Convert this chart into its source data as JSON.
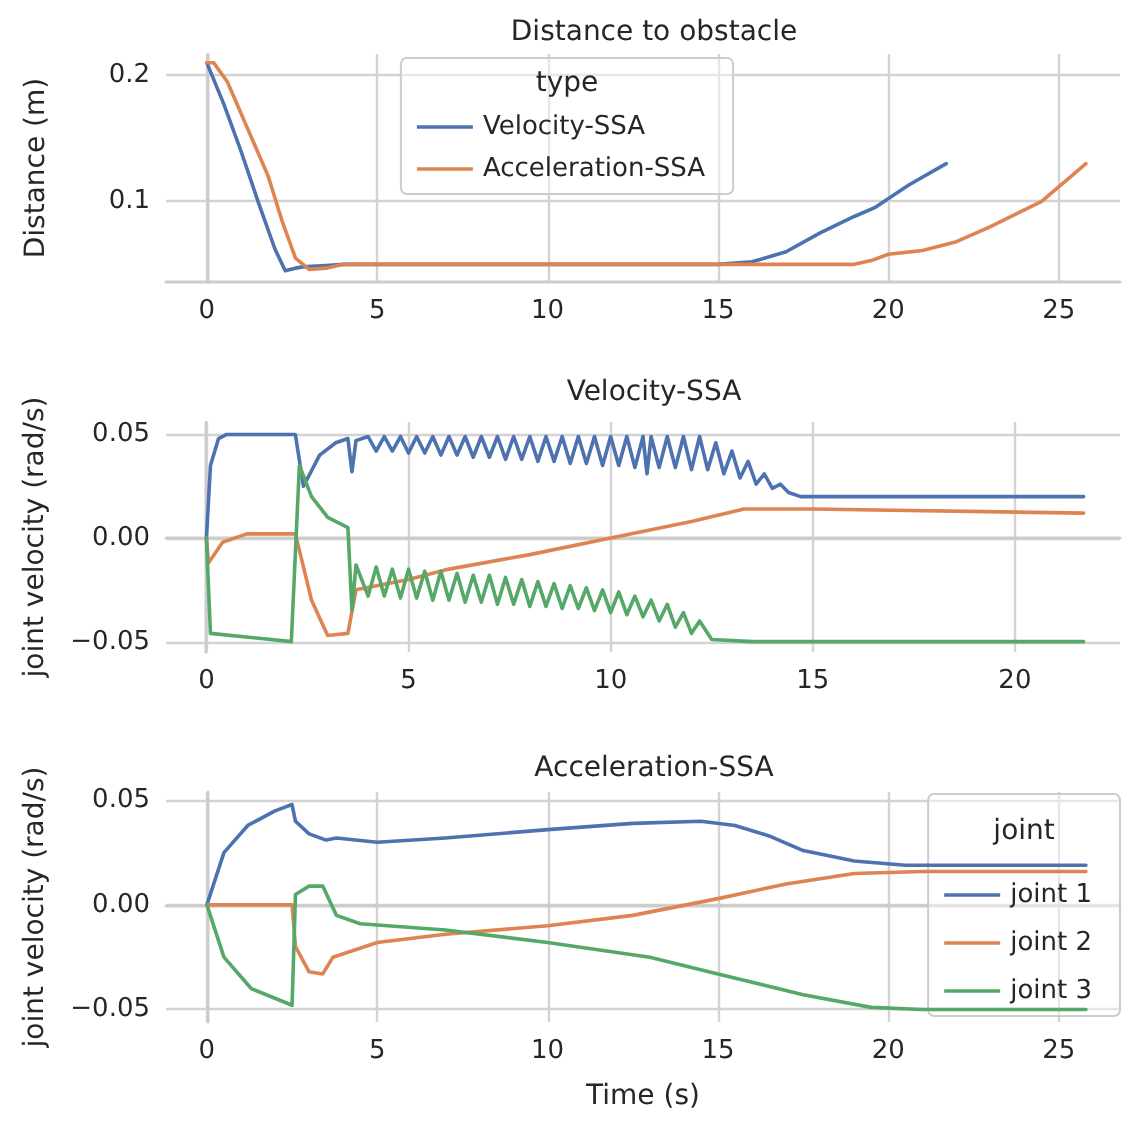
{
  "chart_data": [
    {
      "type": "line",
      "title": "Distance to obstacle",
      "ylabel": "Distance (m)",
      "legend_title": "type",
      "legend": "top",
      "grid": true,
      "xlim": [
        -1.2,
        26.8
      ],
      "ylim": [
        0.036,
        0.217
      ],
      "xticks": [
        0,
        5,
        10,
        15,
        20,
        25
      ],
      "yticks": [
        {
          "value": 0.1,
          "label": "0.1"
        },
        {
          "value": 0.2,
          "label": "0.2"
        }
      ],
      "series": [
        {
          "name": "Velocity-SSA",
          "color": "#4c72b0",
          "x": [
            0,
            0.5,
            1,
            1.5,
            2,
            2.3,
            2.6,
            2.8,
            3.5,
            4,
            15,
            16,
            17,
            18,
            19,
            19.6,
            20.6,
            21.7
          ],
          "values": [
            0.21,
            0.177,
            0.14,
            0.1,
            0.062,
            0.045,
            0.047,
            0.048,
            0.049,
            0.05,
            0.05,
            0.052,
            0.06,
            0.075,
            0.088,
            0.095,
            0.113,
            0.13
          ]
        },
        {
          "name": "Acceleration-SSA",
          "color": "#dd8452",
          "x": [
            0,
            0.2,
            0.6,
            1,
            1.4,
            1.8,
            2.2,
            2.6,
            3,
            3.5,
            4,
            10,
            19,
            19.5,
            20,
            21,
            22,
            23,
            24.5,
            25.8
          ],
          "values": [
            0.21,
            0.21,
            0.195,
            0.17,
            0.145,
            0.12,
            0.085,
            0.055,
            0.046,
            0.047,
            0.05,
            0.05,
            0.05,
            0.053,
            0.058,
            0.061,
            0.068,
            0.08,
            0.1,
            0.13
          ]
        }
      ]
    },
    {
      "type": "line",
      "title": "Velocity-SSA",
      "ylabel": "joint velocity (rad/s)",
      "grid": true,
      "xlim": [
        -1,
        22.6
      ],
      "ylim": [
        -0.055,
        0.056
      ],
      "xticks": [
        0,
        5,
        10,
        15,
        20
      ],
      "yticks": [
        {
          "value": -0.05,
          "label": "−0.05"
        },
        {
          "value": 0,
          "label": "0.00"
        },
        {
          "value": 0.05,
          "label": "0.05"
        }
      ],
      "series": [
        {
          "color": "#4c72b0",
          "x": [
            0,
            0.1,
            0.3,
            0.5,
            2.2,
            2.4,
            2.8,
            3.2,
            3.5,
            3.6,
            3.7,
            4.0,
            4.2,
            4.4,
            4.6,
            4.8,
            5.0,
            5.2,
            5.4,
            5.6,
            5.8,
            6.0,
            6.2,
            6.4,
            6.6,
            6.8,
            7.0,
            7.2,
            7.4,
            7.6,
            7.8,
            8.0,
            8.2,
            8.4,
            8.6,
            8.8,
            9.0,
            9.2,
            9.4,
            9.6,
            9.8,
            10.0,
            10.2,
            10.4,
            10.6,
            10.8,
            10.9,
            11.0,
            11.2,
            11.4,
            11.6,
            11.8,
            12.0,
            12.2,
            12.4,
            12.6,
            12.8,
            13.0,
            13.2,
            13.4,
            13.6,
            13.8,
            14.0,
            14.2,
            14.4,
            14.7,
            21.7
          ],
          "values": [
            0,
            0.035,
            0.048,
            0.05,
            0.05,
            0.025,
            0.04,
            0.046,
            0.048,
            0.032,
            0.047,
            0.049,
            0.042,
            0.049,
            0.042,
            0.049,
            0.041,
            0.049,
            0.041,
            0.049,
            0.04,
            0.049,
            0.04,
            0.049,
            0.039,
            0.049,
            0.039,
            0.049,
            0.038,
            0.049,
            0.038,
            0.049,
            0.037,
            0.049,
            0.037,
            0.049,
            0.036,
            0.049,
            0.036,
            0.049,
            0.035,
            0.049,
            0.035,
            0.049,
            0.034,
            0.049,
            0.031,
            0.049,
            0.034,
            0.049,
            0.034,
            0.049,
            0.033,
            0.049,
            0.033,
            0.046,
            0.031,
            0.042,
            0.029,
            0.037,
            0.026,
            0.031,
            0.024,
            0.026,
            0.022,
            0.02,
            0.02
          ]
        },
        {
          "color": "#dd8452",
          "x": [
            0,
            0.05,
            0.4,
            1,
            2.2,
            2.6,
            3,
            3.5,
            3.7,
            5,
            6,
            8,
            10,
            12,
            13.3,
            15,
            21.7
          ],
          "values": [
            0,
            -0.012,
            -0.002,
            0.002,
            0.002,
            -0.03,
            -0.047,
            -0.046,
            -0.025,
            -0.02,
            -0.015,
            -0.008,
            0,
            0.008,
            0.014,
            0.014,
            0.012
          ]
        },
        {
          "color": "#55a868",
          "x": [
            0,
            0.1,
            2.1,
            2.3,
            2.6,
            3.0,
            3.5,
            3.6,
            3.7,
            4.0,
            4.2,
            4.4,
            4.6,
            4.8,
            5.0,
            5.2,
            5.4,
            5.6,
            5.8,
            6.0,
            6.2,
            6.4,
            6.6,
            6.8,
            7.0,
            7.2,
            7.4,
            7.6,
            7.8,
            8.0,
            8.2,
            8.4,
            8.6,
            8.8,
            9.0,
            9.2,
            9.4,
            9.6,
            9.8,
            10.0,
            10.2,
            10.4,
            10.6,
            10.8,
            11.0,
            11.2,
            11.4,
            11.6,
            11.8,
            12.0,
            12.2,
            12.5,
            13.5,
            21.7
          ],
          "values": [
            0,
            -0.046,
            -0.05,
            0.035,
            0.02,
            0.01,
            0.005,
            -0.035,
            -0.013,
            -0.028,
            -0.014,
            -0.028,
            -0.015,
            -0.029,
            -0.015,
            -0.029,
            -0.016,
            -0.03,
            -0.016,
            -0.03,
            -0.017,
            -0.031,
            -0.018,
            -0.031,
            -0.018,
            -0.032,
            -0.019,
            -0.032,
            -0.02,
            -0.033,
            -0.021,
            -0.033,
            -0.022,
            -0.034,
            -0.023,
            -0.034,
            -0.024,
            -0.035,
            -0.025,
            -0.036,
            -0.026,
            -0.037,
            -0.028,
            -0.038,
            -0.03,
            -0.04,
            -0.032,
            -0.043,
            -0.036,
            -0.046,
            -0.04,
            -0.049,
            -0.05,
            -0.05
          ]
        }
      ]
    },
    {
      "type": "line",
      "title": "Acceleration-SSA",
      "xlabel": "Time (s)",
      "ylabel": "joint velocity (rad/s)",
      "legend_title": "joint",
      "legend": "right",
      "grid": true,
      "xlim": [
        -1.2,
        26.8
      ],
      "ylim": [
        -0.056,
        0.054
      ],
      "xticks": [
        0,
        5,
        10,
        15,
        20,
        25
      ],
      "yticks": [
        {
          "value": -0.05,
          "label": "−0.05"
        },
        {
          "value": 0,
          "label": "0.00"
        },
        {
          "value": 0.05,
          "label": "0.05"
        }
      ],
      "series": [
        {
          "name": "joint 1",
          "color": "#4c72b0",
          "x": [
            0,
            0.5,
            1.2,
            2,
            2.5,
            2.6,
            3,
            3.5,
            3.8,
            5,
            7,
            10,
            12.5,
            14.5,
            15.5,
            16.5,
            17.5,
            19,
            20.5,
            25.8
          ],
          "values": [
            0,
            0.025,
            0.038,
            0.045,
            0.048,
            0.04,
            0.034,
            0.031,
            0.032,
            0.03,
            0.032,
            0.036,
            0.039,
            0.04,
            0.038,
            0.033,
            0.026,
            0.021,
            0.019,
            0.019
          ]
        },
        {
          "name": "joint 2",
          "color": "#dd8452",
          "x": [
            0,
            2.5,
            2.6,
            3,
            3.4,
            3.7,
            5,
            7,
            10,
            12.5,
            15,
            17,
            19,
            21,
            25.8
          ],
          "values": [
            0,
            0,
            -0.02,
            -0.032,
            -0.033,
            -0.025,
            -0.018,
            -0.014,
            -0.01,
            -0.005,
            0.003,
            0.01,
            0.015,
            0.016,
            0.016
          ]
        },
        {
          "name": "joint 3",
          "color": "#55a868",
          "x": [
            0,
            0.5,
            1.3,
            2.5,
            2.6,
            3,
            3.4,
            3.8,
            4.5,
            7,
            10,
            13,
            15,
            17.5,
            19.5,
            21,
            25.8
          ],
          "values": [
            0,
            -0.025,
            -0.04,
            -0.048,
            0.005,
            0.009,
            0.009,
            -0.005,
            -0.009,
            -0.012,
            -0.018,
            -0.025,
            -0.033,
            -0.043,
            -0.049,
            -0.05,
            -0.05
          ]
        }
      ]
    }
  ]
}
